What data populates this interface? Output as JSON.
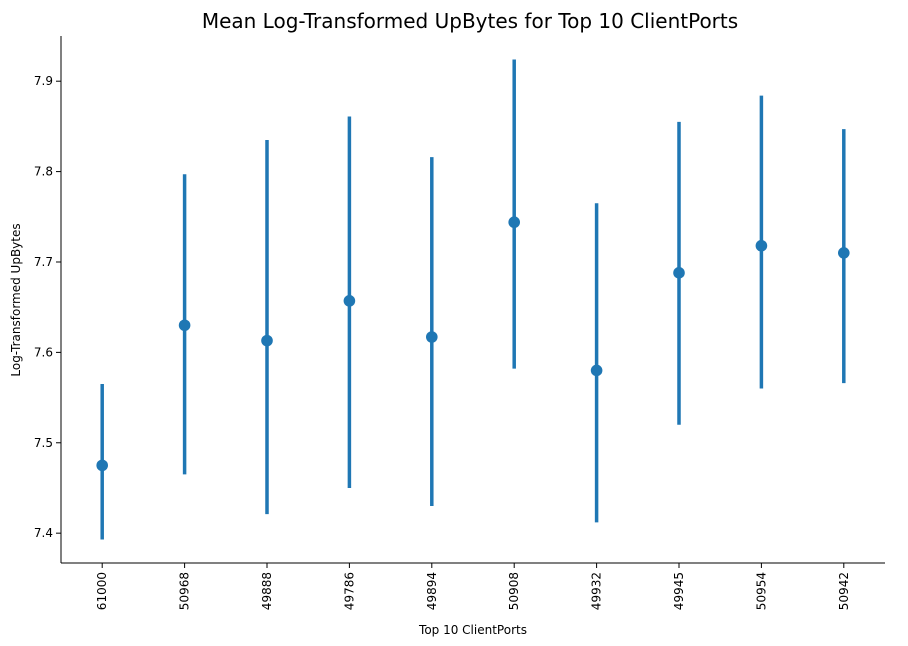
{
  "chart_data": {
    "type": "pointplot",
    "title": "Mean Log-Transformed UpBytes for Top 10 ClientPorts",
    "xlabel": "Top 10 ClientPorts",
    "ylabel": "Log-Transformed UpBytes",
    "categories": [
      "61000",
      "50968",
      "49888",
      "49786",
      "49894",
      "50908",
      "49932",
      "49945",
      "50954",
      "50942"
    ],
    "values": [
      7.475,
      7.63,
      7.613,
      7.657,
      7.617,
      7.744,
      7.58,
      7.688,
      7.718,
      7.71
    ],
    "ci_low": [
      7.393,
      7.465,
      7.421,
      7.45,
      7.43,
      7.582,
      7.412,
      7.52,
      7.56,
      7.566
    ],
    "ci_high": [
      7.565,
      7.797,
      7.835,
      7.861,
      7.816,
      7.924,
      7.765,
      7.855,
      7.884,
      7.847
    ],
    "yticks": [
      "7.4",
      "7.5",
      "7.6",
      "7.7",
      "7.8",
      "7.9"
    ],
    "ylim": [
      7.367,
      7.95
    ],
    "grid": false,
    "legend": "none",
    "color": "#1f77b4"
  }
}
